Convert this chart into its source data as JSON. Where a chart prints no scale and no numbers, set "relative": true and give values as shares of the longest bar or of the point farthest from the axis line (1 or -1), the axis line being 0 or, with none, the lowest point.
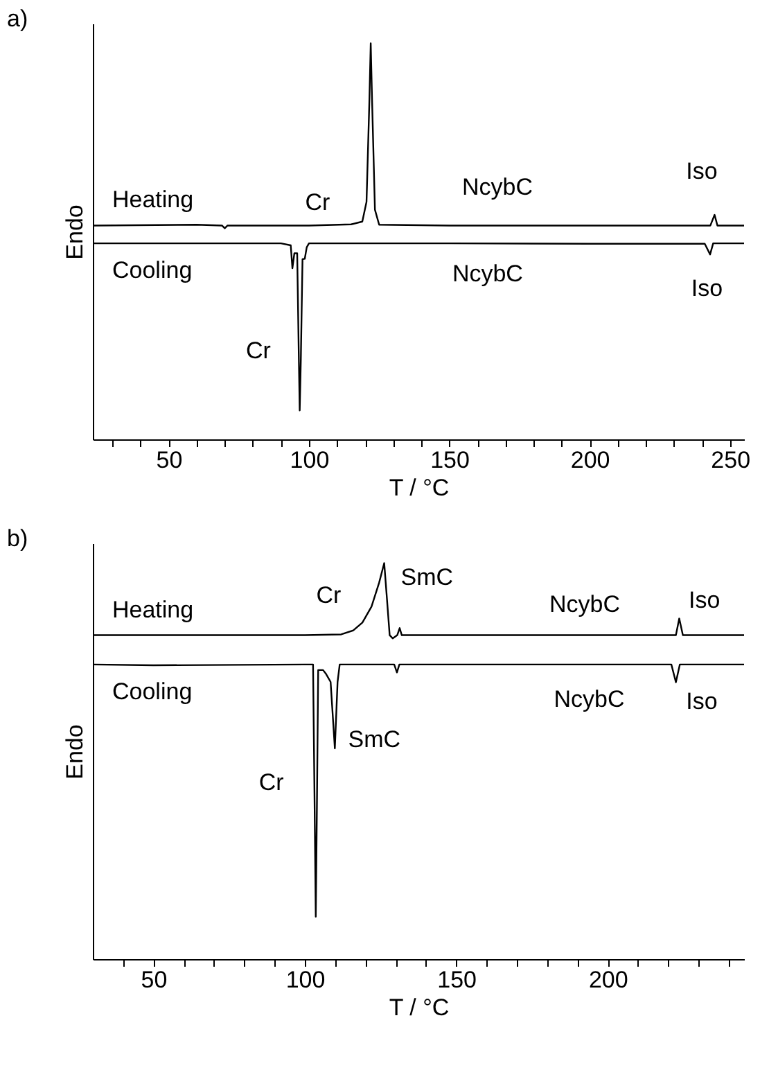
{
  "chart_data": [
    {
      "type": "line",
      "title": "a)",
      "xlabel": "T / °C",
      "ylabel": "Endo",
      "relative": true,
      "grid": false,
      "xlim": [
        23,
        255
      ],
      "xticks": [
        {
          "value": 30,
          "label": null
        },
        {
          "value": 40,
          "label": null
        },
        50,
        {
          "value": 60,
          "label": null
        },
        {
          "value": 70,
          "label": null
        },
        {
          "value": 80,
          "label": null
        },
        {
          "value": 90,
          "label": null
        },
        100,
        {
          "value": 110,
          "label": null
        },
        {
          "value": 120,
          "label": null
        },
        {
          "value": 130,
          "label": null
        },
        {
          "value": 140,
          "label": null
        },
        150,
        {
          "value": 160,
          "label": null
        },
        {
          "value": 170,
          "label": null
        },
        {
          "value": 180,
          "label": null
        },
        {
          "value": 190,
          "label": null
        },
        200,
        {
          "value": 210,
          "label": null
        },
        {
          "value": 220,
          "label": null
        },
        {
          "value": 230,
          "label": null
        },
        {
          "value": 240,
          "label": null
        },
        250
      ],
      "series": [
        {
          "name": "Heating",
          "color": "#000000",
          "x": [
            23,
            60,
            69,
            70,
            71,
            100,
            115,
            119,
            120.5,
            121.5,
            122,
            122.5,
            123.5,
            125,
            150,
            200,
            243,
            244.5,
            245.5,
            255
          ],
          "values": [
            0.54,
            0.542,
            0.54,
            0.533,
            0.54,
            0.54,
            0.543,
            0.55,
            0.6,
            0.85,
            1.0,
            0.85,
            0.58,
            0.542,
            0.54,
            0.54,
            0.54,
            0.567,
            0.54,
            0.54
          ]
        },
        {
          "name": "Cooling",
          "color": "#000000",
          "x": [
            23,
            90,
            93.5,
            94.1,
            94.8,
            95.8,
            96.4,
            96.7,
            97.1,
            97.7,
            98.5,
            99.2,
            100,
            150,
            200,
            241,
            242.9,
            244,
            255
          ],
          "values": [
            0.495,
            0.495,
            0.49,
            0.432,
            0.47,
            0.47,
            0.2,
            0.073,
            0.2,
            0.455,
            0.456,
            0.485,
            0.495,
            0.495,
            0.494,
            0.494,
            0.467,
            0.495,
            0.495
          ]
        }
      ],
      "annotations": [
        "Cr",
        "NcybC",
        "Iso",
        "NcybC",
        "Iso",
        "Cr"
      ]
    },
    {
      "type": "line",
      "title": "b)",
      "xlabel": "T / °C",
      "ylabel": "Endo",
      "relative": true,
      "grid": false,
      "xlim": [
        30,
        245
      ],
      "xticks": [
        {
          "value": 40,
          "label": null
        },
        50,
        {
          "value": 60,
          "label": null
        },
        {
          "value": 70,
          "label": null
        },
        {
          "value": 80,
          "label": null
        },
        {
          "value": 90,
          "label": null
        },
        100,
        {
          "value": 110,
          "label": null
        },
        {
          "value": 120,
          "label": null
        },
        {
          "value": 130,
          "label": null
        },
        {
          "value": 140,
          "label": null
        },
        150,
        {
          "value": 160,
          "label": null
        },
        {
          "value": 170,
          "label": null
        },
        {
          "value": 180,
          "label": null
        },
        {
          "value": 190,
          "label": null
        },
        200,
        {
          "value": 210,
          "label": null
        },
        {
          "value": 220,
          "label": null
        },
        {
          "value": 230,
          "label": null
        },
        {
          "value": 240,
          "label": null
        }
      ],
      "series": [
        {
          "name": "Heating",
          "color": "#000000",
          "x": [
            30,
            100,
            112,
            116,
            119,
            122,
            124.5,
            126.2,
            127,
            128,
            129,
            130.5,
            131.3,
            132,
            150,
            200,
            222.5,
            223.6,
            224.8,
            245
          ],
          "values": [
            0.818,
            0.818,
            0.82,
            0.83,
            0.85,
            0.89,
            0.95,
            1.0,
            0.92,
            0.818,
            0.81,
            0.818,
            0.836,
            0.818,
            0.818,
            0.818,
            0.818,
            0.86,
            0.818,
            0.818
          ]
        },
        {
          "name": "Cooling",
          "color": "#000000",
          "x": [
            30,
            50,
            100,
            102.7,
            103.2,
            103.6,
            104,
            104.4,
            106,
            107,
            108.5,
            109.9,
            110.8,
            111.5,
            129.5,
            130.4,
            131.2,
            200,
            221,
            222.5,
            223.8,
            245
          ],
          "values": [
            0.744,
            0.742,
            0.744,
            0.744,
            0.4,
            0.107,
            0.4,
            0.73,
            0.73,
            0.72,
            0.7,
            0.532,
            0.7,
            0.744,
            0.744,
            0.724,
            0.744,
            0.744,
            0.744,
            0.699,
            0.744,
            0.744
          ]
        }
      ],
      "annotations": [
        "Cr",
        "SmC",
        "NcybC",
        "Iso",
        "SmC",
        "Cr",
        "NcybC",
        "Iso"
      ]
    }
  ]
}
